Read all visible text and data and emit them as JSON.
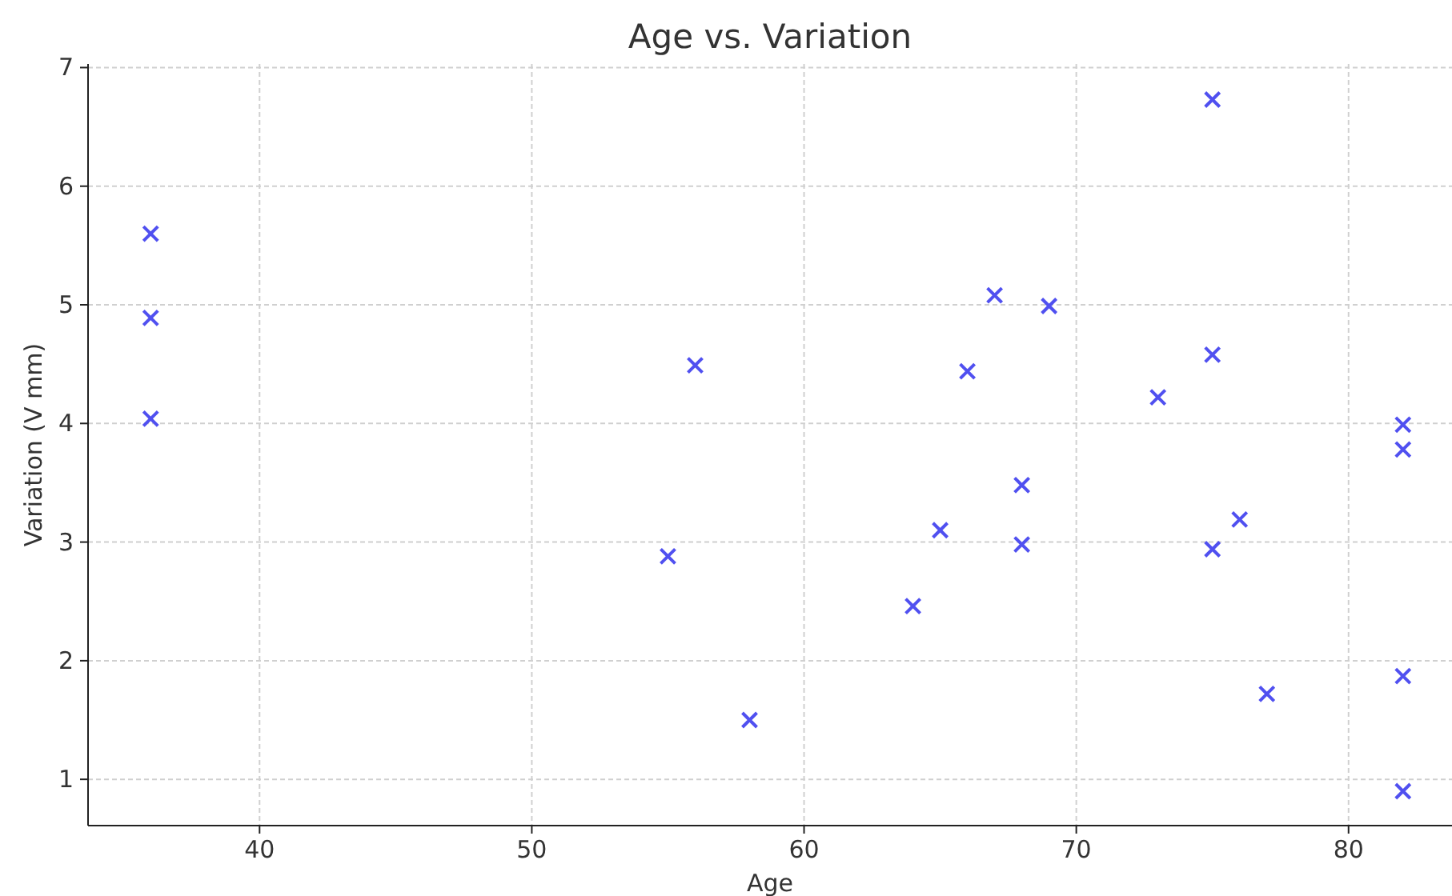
{
  "chart_data": {
    "type": "scatter",
    "title": "Age vs. Variation",
    "xlabel": "Age",
    "ylabel": "Variation (V mm)",
    "x": [
      36,
      36,
      36,
      55,
      56,
      58,
      64,
      65,
      66,
      67,
      68,
      68,
      69,
      73,
      75,
      75,
      75,
      76,
      77,
      82,
      82,
      82,
      82
    ],
    "series": [
      {
        "color": "#5050f0",
        "values": [
          5.6,
          4.89,
          4.04,
          2.88,
          4.49,
          1.5,
          2.46,
          3.1,
          4.44,
          5.08,
          3.48,
          2.98,
          4.99,
          4.22,
          6.73,
          4.58,
          2.94,
          3.19,
          1.72,
          3.99,
          3.78,
          1.87,
          0.9
        ]
      }
    ],
    "xlim": [
      33.7,
      83.8
    ],
    "ylim": [
      0.61,
      7.03
    ],
    "xticks": [
      40,
      50,
      60,
      70,
      80
    ],
    "yticks": [
      1,
      2,
      3,
      4,
      5,
      6,
      7
    ],
    "grid": true,
    "marker": "cross"
  }
}
